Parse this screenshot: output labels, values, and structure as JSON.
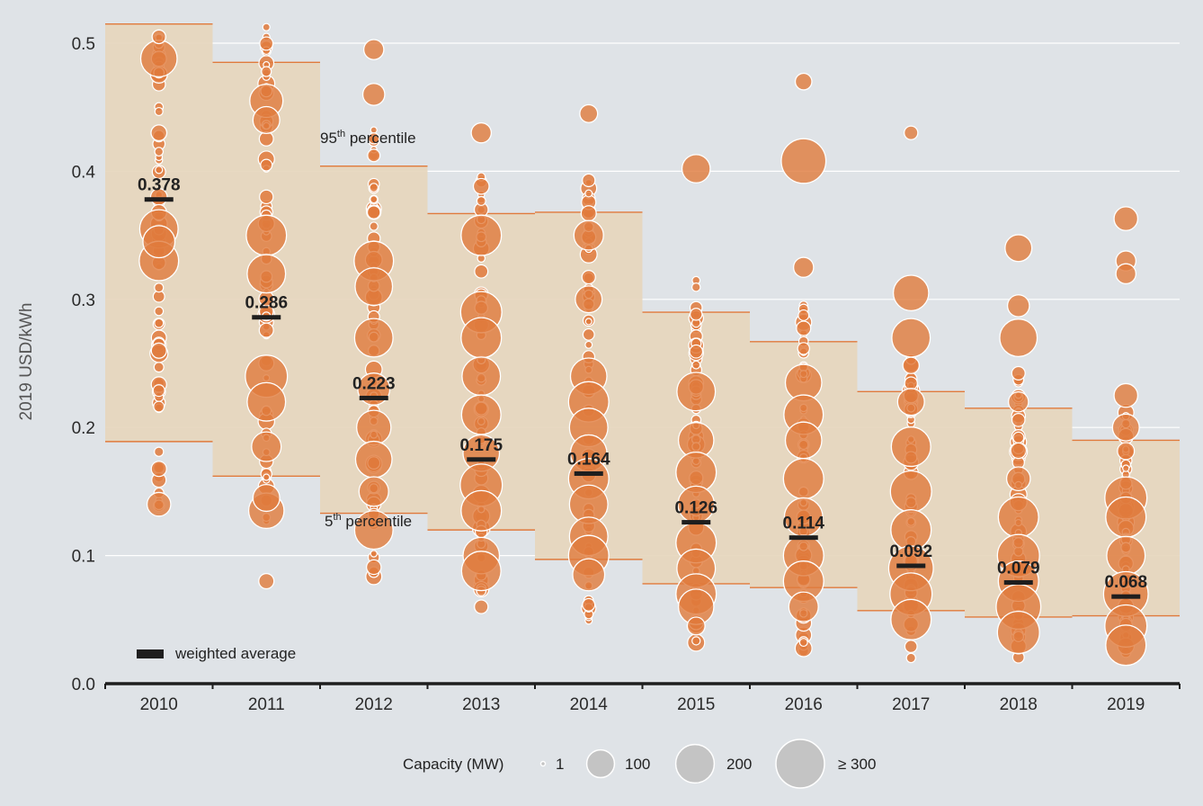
{
  "chart_data": {
    "type": "scatter",
    "ylabel": "2019 USD/kWh",
    "ylim": [
      0,
      0.5
    ],
    "yticks": [
      "0.0",
      "0.1",
      "0.2",
      "0.3",
      "0.4",
      "0.5"
    ],
    "ytick_values": [
      0,
      0.1,
      0.2,
      0.3,
      0.4,
      0.5
    ],
    "categories": [
      "2010",
      "2011",
      "2012",
      "2013",
      "2014",
      "2015",
      "2016",
      "2017",
      "2018",
      "2019"
    ],
    "p95": [
      0.515,
      0.485,
      0.404,
      0.367,
      0.368,
      0.29,
      0.267,
      0.228,
      0.215,
      0.19
    ],
    "p5": [
      0.189,
      0.162,
      0.133,
      0.12,
      0.097,
      0.078,
      0.075,
      0.057,
      0.052,
      0.053
    ],
    "weighted_average": [
      0.378,
      0.286,
      0.223,
      0.175,
      0.164,
      0.126,
      0.114,
      0.092,
      0.079,
      0.068
    ],
    "weighted_average_labels": [
      "0.378",
      "0.286",
      "0.223",
      "0.175",
      "0.164",
      "0.126",
      "0.114",
      "0.092",
      "0.079",
      "0.068"
    ],
    "large_projects": [
      [
        [
          0.488,
          160
        ],
        [
          0.355,
          180
        ],
        [
          0.33,
          190
        ],
        [
          0.345,
          120
        ],
        [
          0.14,
          60
        ],
        [
          0.26,
          20
        ],
        [
          0.43,
          22
        ],
        [
          0.505,
          15
        ]
      ],
      [
        [
          0.455,
          130
        ],
        [
          0.44,
          80
        ],
        [
          0.35,
          200
        ],
        [
          0.32,
          180
        ],
        [
          0.24,
          220
        ],
        [
          0.22,
          180
        ],
        [
          0.185,
          100
        ],
        [
          0.135,
          150
        ],
        [
          0.145,
          80
        ],
        [
          0.08,
          20
        ]
      ],
      [
        [
          0.495,
          40
        ],
        [
          0.46,
          50
        ],
        [
          0.33,
          190
        ],
        [
          0.31,
          170
        ],
        [
          0.27,
          180
        ],
        [
          0.23,
          120
        ],
        [
          0.2,
          140
        ],
        [
          0.175,
          160
        ],
        [
          0.15,
          100
        ],
        [
          0.12,
          180
        ]
      ],
      [
        [
          0.43,
          40
        ],
        [
          0.35,
          200
        ],
        [
          0.29,
          210
        ],
        [
          0.27,
          200
        ],
        [
          0.24,
          180
        ],
        [
          0.21,
          190
        ],
        [
          0.18,
          160
        ],
        [
          0.155,
          220
        ],
        [
          0.135,
          200
        ],
        [
          0.1,
          160
        ],
        [
          0.088,
          190
        ],
        [
          0.06,
          15
        ]
      ],
      [
        [
          0.445,
          30
        ],
        [
          0.35,
          100
        ],
        [
          0.3,
          80
        ],
        [
          0.24,
          160
        ],
        [
          0.22,
          200
        ],
        [
          0.2,
          180
        ],
        [
          0.18,
          160
        ],
        [
          0.16,
          200
        ],
        [
          0.14,
          180
        ],
        [
          0.115,
          180
        ],
        [
          0.1,
          200
        ],
        [
          0.085,
          120
        ]
      ],
      [
        [
          0.402,
          90
        ],
        [
          0.228,
          180
        ],
        [
          0.19,
          150
        ],
        [
          0.165,
          200
        ],
        [
          0.14,
          160
        ],
        [
          0.11,
          200
        ],
        [
          0.09,
          180
        ],
        [
          0.07,
          200
        ],
        [
          0.06,
          150
        ],
        [
          0.045,
          30
        ]
      ],
      [
        [
          0.408,
          250
        ],
        [
          0.47,
          25
        ],
        [
          0.325,
          40
        ],
        [
          0.235,
          160
        ],
        [
          0.21,
          190
        ],
        [
          0.19,
          160
        ],
        [
          0.16,
          200
        ],
        [
          0.13,
          180
        ],
        [
          0.1,
          200
        ],
        [
          0.08,
          200
        ],
        [
          0.06,
          100
        ]
      ],
      [
        [
          0.305,
          150
        ],
        [
          0.27,
          180
        ],
        [
          0.22,
          80
        ],
        [
          0.185,
          190
        ],
        [
          0.15,
          210
        ],
        [
          0.12,
          200
        ],
        [
          0.09,
          250
        ],
        [
          0.07,
          220
        ],
        [
          0.05,
          200
        ],
        [
          0.43,
          15
        ]
      ],
      [
        [
          0.34,
          80
        ],
        [
          0.295,
          50
        ],
        [
          0.27,
          170
        ],
        [
          0.22,
          40
        ],
        [
          0.16,
          60
        ],
        [
          0.13,
          200
        ],
        [
          0.1,
          220
        ],
        [
          0.08,
          200
        ],
        [
          0.06,
          250
        ],
        [
          0.04,
          220
        ]
      ],
      [
        [
          0.363,
          60
        ],
        [
          0.33,
          40
        ],
        [
          0.32,
          40
        ],
        [
          0.225,
          60
        ],
        [
          0.2,
          80
        ],
        [
          0.145,
          220
        ],
        [
          0.13,
          200
        ],
        [
          0.1,
          180
        ],
        [
          0.07,
          250
        ],
        [
          0.045,
          220
        ],
        [
          0.03,
          200
        ]
      ]
    ],
    "legend_title": "Capacity (MW)",
    "legend_sizes": [
      1,
      100,
      200,
      300
    ],
    "legend_labels": [
      "1",
      "100",
      "200",
      "≥ 300"
    ],
    "series_color": "#e07a3c",
    "band_color": "#e6d6bd",
    "band_edge_color": "#e07a3c"
  },
  "annotations": {
    "p95_label": "95",
    "p95_sup": "th",
    "p95_rest": " percentile",
    "p5_label": "5",
    "p5_sup": "th",
    "p5_rest": " percentile",
    "weighted_average_label": "weighted average"
  }
}
